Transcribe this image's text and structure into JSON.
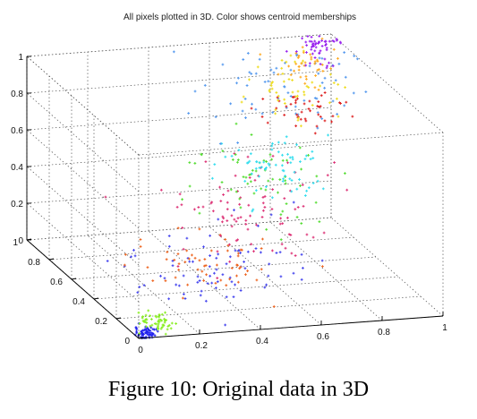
{
  "figure": {
    "caption": "Figure 10: Original data in 3D"
  },
  "chart_data": {
    "type": "scatter",
    "title": "All pixels plotted in 3D. Color shows centroid memberships",
    "xlabel": "",
    "ylabel": "",
    "zlabel": "",
    "xlim": [
      0,
      1
    ],
    "ylim": [
      0,
      1
    ],
    "zlim": [
      0,
      1
    ],
    "x_ticks": [
      "0",
      "0.2",
      "0.4",
      "0.6",
      "0.8",
      "1"
    ],
    "y_ticks": [
      "0",
      "0.2",
      "0.4",
      "0.6",
      "0.8",
      "1"
    ],
    "z_ticks": [
      "0",
      "0.2",
      "0.4",
      "0.6",
      "0.8",
      "1"
    ],
    "grid": true,
    "marker": "+",
    "clusters": [
      {
        "color": "#2222ee",
        "center": [
          0.03,
          0.02,
          0.01
        ],
        "spread": [
          0.02,
          0.02,
          0.02
        ],
        "count": 60
      },
      {
        "color": "#88ee22",
        "center": [
          0.08,
          0.06,
          0.05
        ],
        "spread": [
          0.03,
          0.03,
          0.025
        ],
        "count": 55
      },
      {
        "color": "#4444ee",
        "center": [
          0.4,
          0.28,
          0.18
        ],
        "spread": [
          0.15,
          0.1,
          0.1
        ],
        "count": 80
      },
      {
        "color": "#ee6622",
        "center": [
          0.3,
          0.28,
          0.22
        ],
        "spread": [
          0.12,
          0.1,
          0.08
        ],
        "count": 60
      },
      {
        "color": "#dd3377",
        "center": [
          0.5,
          0.45,
          0.4
        ],
        "spread": [
          0.14,
          0.12,
          0.12
        ],
        "count": 90
      },
      {
        "color": "#55dd33",
        "center": [
          0.58,
          0.55,
          0.48
        ],
        "spread": [
          0.1,
          0.1,
          0.1
        ],
        "count": 60
      },
      {
        "color": "#33ddee",
        "center": [
          0.66,
          0.58,
          0.55
        ],
        "spread": [
          0.1,
          0.1,
          0.08
        ],
        "count": 70
      },
      {
        "color": "#5599ee",
        "center": [
          0.75,
          0.75,
          0.85
        ],
        "spread": [
          0.15,
          0.12,
          0.12
        ],
        "count": 70
      },
      {
        "color": "#dd2222",
        "center": [
          0.82,
          0.78,
          0.72
        ],
        "spread": [
          0.06,
          0.06,
          0.06
        ],
        "count": 45
      },
      {
        "color": "#eedd22",
        "center": [
          0.8,
          0.8,
          0.85
        ],
        "spread": [
          0.08,
          0.08,
          0.08
        ],
        "count": 50
      },
      {
        "color": "#ffaa22",
        "center": [
          0.88,
          0.88,
          0.9
        ],
        "spread": [
          0.05,
          0.05,
          0.05
        ],
        "count": 40
      },
      {
        "color": "#9922ee",
        "center": [
          0.95,
          0.95,
          0.97
        ],
        "spread": [
          0.03,
          0.03,
          0.04
        ],
        "count": 55
      }
    ]
  }
}
